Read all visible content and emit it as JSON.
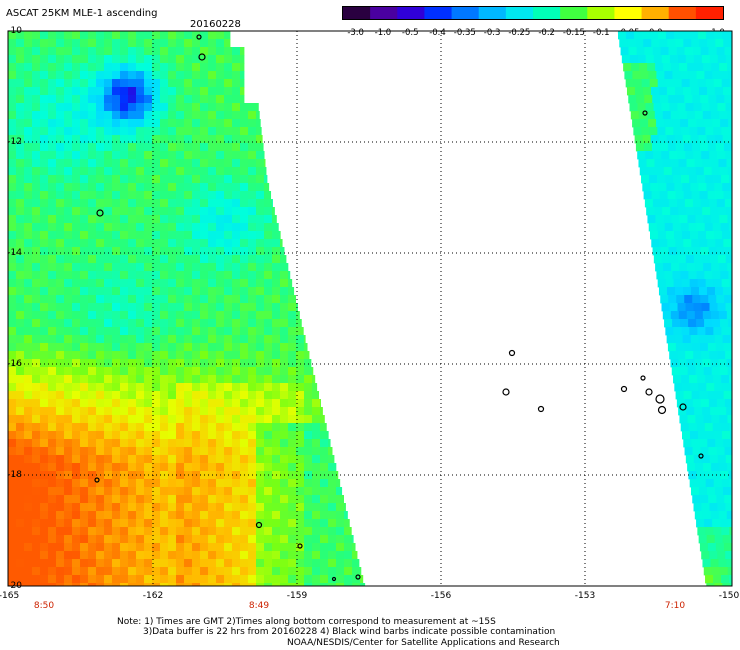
{
  "header": {
    "title": "ASCAT 25KM MLE-1 ascending",
    "date": "20160228"
  },
  "colorbar": {
    "labels": [
      "-3.0",
      "-1.0",
      "-0.5",
      "-0.4",
      "-0.35",
      "-0.3",
      "-0.25",
      "-0.2",
      "-0.15",
      "-0.1",
      "-0.05",
      "0.0",
      "1.0"
    ],
    "colors": [
      "#2a0040",
      "#4a00a0",
      "#3000d8",
      "#0030ff",
      "#0078ff",
      "#00b8ff",
      "#00e8f0",
      "#00ffb8",
      "#40ff40",
      "#a8ff00",
      "#ffff00",
      "#ffb000",
      "#ff5000",
      "#ff2000"
    ]
  },
  "map": {
    "lat_labels": [
      "-10",
      "-12",
      "-14",
      "-16",
      "-18",
      "-20"
    ],
    "lon_labels": [
      "-165",
      "-162",
      "-159",
      "-156",
      "-153",
      "-150"
    ],
    "pass_times": [
      "8:50",
      "8:49",
      "7:10"
    ]
  },
  "notes": {
    "line1": "Note: 1) Times are GMT 2)Times along bottom correspond to measurement at ~15S",
    "line2": "3)Data buffer is 22 hrs from 20160228 4) Black wind barbs indicate possible contamination",
    "line3": "NOAA/NESDIS/Center for Satellite Applications and Research"
  }
}
